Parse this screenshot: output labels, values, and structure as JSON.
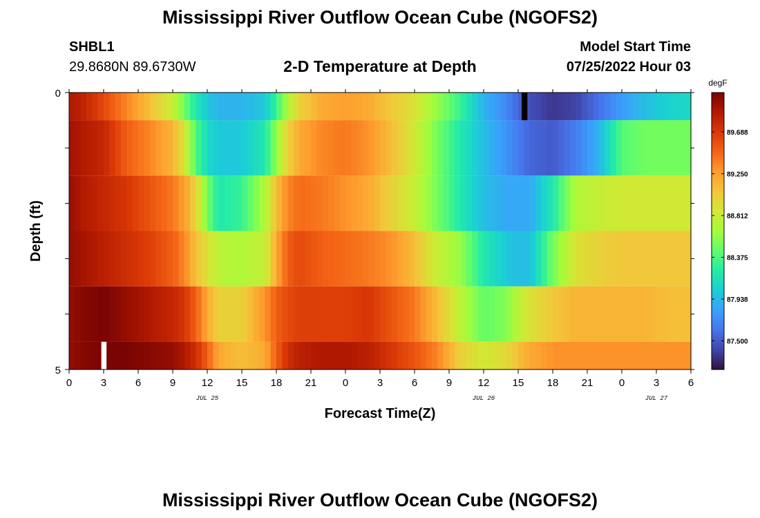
{
  "header": {
    "title": "Mississippi River Outflow Ocean Cube (NGOFS2)",
    "station": "SHBL1",
    "coords": "29.8680N  89.6730W",
    "subtitle": "2-D Temperature at Depth",
    "start_label": "Model Start Time",
    "start_value": "07/25/2022 Hour 03"
  },
  "footer": {
    "title": "Mississippi River Outflow Ocean Cube (NGOFS2)"
  },
  "chart_data": {
    "type": "heatmap",
    "xlabel": "Forecast Time(Z)",
    "ylabel": "Depth (ft)",
    "xlim": [
      0,
      54
    ],
    "ylim": [
      0,
      5
    ],
    "x_tick_labels": [
      "0",
      "3",
      "6",
      "9",
      "12",
      "15",
      "18",
      "21",
      "0",
      "3",
      "6",
      "9",
      "12",
      "15",
      "18",
      "21",
      "0",
      "3",
      "6"
    ],
    "date_labels": [
      {
        "label": "JUL 25",
        "x": 12
      },
      {
        "label": "JUL 26",
        "x": 36
      },
      {
        "label": "JUL 27",
        "x": 51
      }
    ],
    "y_tick_labels": [
      "0",
      "5"
    ],
    "colorbar": {
      "unit": "degF",
      "range": [
        87.2,
        90.1
      ],
      "tick_values": [
        87.5,
        87.938,
        88.375,
        88.812,
        89.25,
        89.688
      ],
      "tick_labels": [
        "87.500",
        "87.938",
        "88.375",
        "88.812",
        "89.250",
        "89.688"
      ],
      "colormap": [
        "#30123b",
        "#4145ab",
        "#4675ed",
        "#39a2fc",
        "#1bcfd4",
        "#24eca6",
        "#61fc6c",
        "#a4fc3b",
        "#d1e834",
        "#f3c63a",
        "#fe9b2d",
        "#f36315",
        "#d93806",
        "#b11901",
        "#7a0403"
      ]
    },
    "depth_levels": [
      0,
      1,
      2,
      3,
      4,
      5
    ],
    "anchor_hours": [
      0,
      1,
      3,
      5,
      7,
      9,
      10,
      11,
      12,
      13,
      15,
      17,
      18,
      19,
      20,
      22,
      24,
      26,
      28,
      30,
      32,
      34,
      36,
      38,
      39,
      40,
      42,
      44,
      46,
      48,
      50,
      52,
      54
    ],
    "rows": [
      {
        "depth_range": [
          0,
          0.5
        ],
        "values": [
          89.9,
          89.85,
          89.6,
          89.35,
          89.1,
          88.8,
          88.5,
          88.2,
          88.0,
          87.9,
          87.9,
          88.0,
          88.3,
          88.7,
          89.0,
          89.2,
          89.25,
          89.2,
          89.05,
          88.9,
          88.6,
          88.3,
          87.9,
          87.7,
          87.55,
          87.45,
          87.35,
          87.4,
          87.6,
          87.8,
          87.95,
          88.05,
          88.1
        ]
      },
      {
        "depth_range": [
          0.5,
          1.5
        ],
        "values": [
          89.95,
          89.9,
          89.8,
          89.5,
          89.35,
          89.15,
          88.9,
          88.4,
          88.1,
          88.0,
          88.0,
          88.2,
          88.6,
          89.0,
          89.2,
          89.35,
          89.4,
          89.3,
          89.1,
          88.85,
          88.5,
          88.2,
          87.95,
          87.75,
          87.65,
          87.55,
          87.5,
          87.65,
          87.9,
          88.4,
          88.5,
          88.5,
          88.5
        ]
      },
      {
        "depth_range": [
          1.5,
          2.5
        ],
        "values": [
          90.0,
          89.9,
          89.8,
          89.7,
          89.55,
          89.4,
          89.25,
          89.0,
          88.5,
          88.2,
          88.3,
          88.7,
          89.1,
          89.35,
          89.45,
          89.4,
          89.3,
          89.2,
          89.0,
          88.8,
          88.5,
          88.2,
          87.95,
          87.85,
          87.85,
          87.85,
          88.2,
          88.7,
          88.8,
          88.85,
          88.85,
          88.85,
          88.85
        ]
      },
      {
        "depth_range": [
          2.5,
          3.5
        ],
        "values": [
          90.0,
          89.95,
          89.85,
          89.75,
          89.65,
          89.5,
          89.35,
          89.1,
          88.9,
          88.75,
          88.7,
          88.8,
          89.2,
          89.5,
          89.6,
          89.5,
          89.45,
          89.4,
          89.3,
          89.1,
          88.8,
          88.6,
          88.2,
          88.0,
          87.95,
          87.95,
          88.5,
          88.9,
          89.0,
          89.05,
          89.05,
          89.05,
          89.05
        ]
      },
      {
        "depth_range": [
          3.5,
          4.5
        ],
        "values": [
          90.0,
          90.05,
          90.1,
          90.0,
          89.9,
          89.8,
          89.7,
          89.5,
          89.2,
          89.0,
          89.0,
          89.3,
          89.5,
          89.6,
          89.65,
          89.65,
          89.65,
          89.7,
          89.55,
          89.4,
          89.1,
          88.75,
          88.45,
          88.55,
          88.75,
          88.9,
          89.05,
          89.15,
          89.15,
          89.15,
          89.15,
          89.1,
          89.1
        ]
      },
      {
        "depth_range": [
          4.5,
          5
        ],
        "values": [
          90.0,
          90.05,
          90.1,
          90.1,
          90.05,
          90.0,
          89.9,
          89.75,
          89.5,
          89.2,
          89.1,
          89.2,
          89.5,
          89.75,
          89.85,
          89.9,
          89.9,
          89.85,
          89.7,
          89.55,
          89.35,
          89.0,
          88.85,
          88.95,
          89.1,
          89.2,
          89.3,
          89.3,
          89.3,
          89.3,
          89.3,
          89.3,
          89.3
        ]
      }
    ],
    "markers": [
      {
        "name": "max-marker",
        "color": "#000000",
        "hour_range": [
          39.3,
          39.8
        ],
        "depth_range": [
          0,
          0.5
        ]
      },
      {
        "name": "min-marker",
        "color": "#ffffff",
        "hour_range": [
          2.8,
          3.25
        ],
        "depth_range": [
          4.5,
          5
        ]
      }
    ],
    "grid": false
  }
}
